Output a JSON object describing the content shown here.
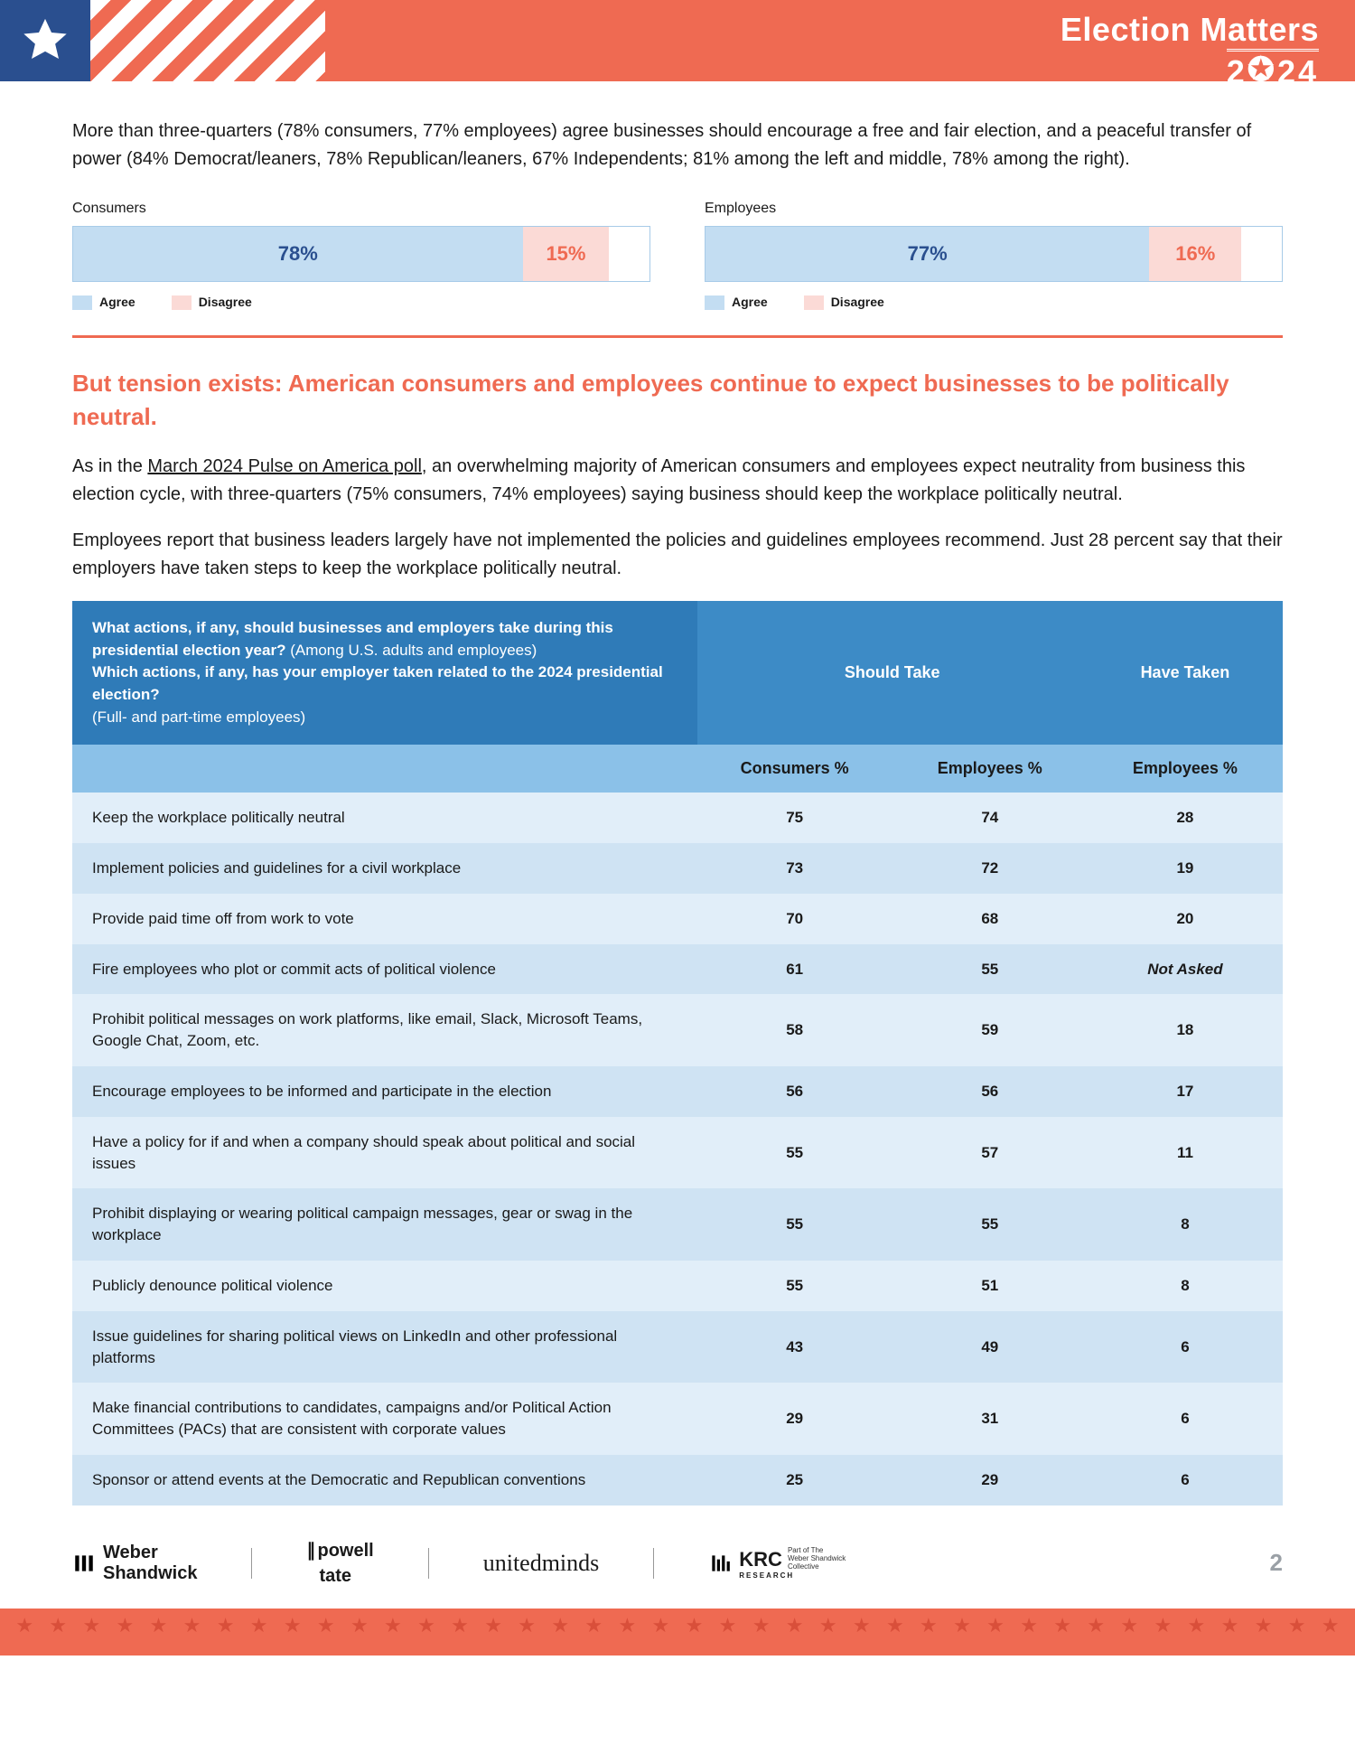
{
  "colors": {
    "coral": "#ef6a52",
    "navy": "#2a4f8f",
    "agree_fill": "#c3ddf2",
    "disagree_fill": "#fbdad6",
    "table_head_dark": "#2f7bb8",
    "table_head_mid": "#3d8bc6",
    "table_head_sub": "#8bc1e8",
    "row_light": "#e1eef9",
    "row_dark": "#cfe3f3",
    "page_num": "#9aa0a6"
  },
  "header": {
    "title_line1": "Election Matters",
    "title_line2_prefix": "2",
    "title_line2_suffix": "24",
    "star_glyph": "★"
  },
  "intro": "More than three-quarters (78% consumers, 77% employees) agree businesses should encourage a free and fair election, and a peaceful transfer of power (84% Democrat/leaners, 78% Republican/leaners, 67% Independents; 81% among the left and middle, 78% among the right).",
  "charts": {
    "legend_agree": "Agree",
    "legend_disagree": "Disagree",
    "consumers": {
      "title": "Consumers",
      "agree_pct": 78,
      "disagree_pct": 15,
      "agree_label": "78%",
      "disagree_label": "15%"
    },
    "employees": {
      "title": "Employees",
      "agree_pct": 77,
      "disagree_pct": 16,
      "agree_label": "77%",
      "disagree_label": "16%"
    }
  },
  "sub_head": "But tension exists: American consumers and employees continue to expect businesses to be politically neutral.",
  "para1_pre": "As in the ",
  "para1_link": "March 2024 Pulse on America poll",
  "para1_post": ", an overwhelming majority of American consumers and employees expect neutrality from business this election cycle, with three-quarters (75% consumers, 74% employees) saying business should keep the workplace politically neutral.",
  "para2": "Employees report that business leaders largely have not implemented the policies and guidelines employees recommend. Just 28 percent say that their employers have taken steps to keep the workplace politically neutral.",
  "table": {
    "q_bold1": "What actions, if any, should businesses and employers take during this presidential election year?",
    "q_light1": " (Among U.S. adults and employees)",
    "q_bold2": "Which actions, if any, has your employer taken related to the 2024 presidential election?",
    "q_light2": "(Full- and part-time employees)",
    "col_should": "Should Take",
    "col_have": "Have Taken",
    "sub_consumers": "Consumers %",
    "sub_employees": "Employees %",
    "sub_employees2": "Employees %",
    "not_asked": "Not Asked",
    "rows": [
      {
        "label": "Keep the workplace politically neutral",
        "c": "75",
        "e": "74",
        "h": "28"
      },
      {
        "label": "Implement policies and guidelines for a civil workplace",
        "c": "73",
        "e": "72",
        "h": "19"
      },
      {
        "label": "Provide paid time off from work to vote",
        "c": "70",
        "e": "68",
        "h": "20"
      },
      {
        "label": "Fire employees who plot or commit acts of political violence",
        "c": "61",
        "e": "55",
        "h": "__NA__"
      },
      {
        "label": "Prohibit political messages on work platforms, like email, Slack, Microsoft Teams, Google Chat, Zoom, etc.",
        "c": "58",
        "e": "59",
        "h": "18"
      },
      {
        "label": "Encourage employees to be informed and participate in the election",
        "c": "56",
        "e": "56",
        "h": "17"
      },
      {
        "label": "Have a policy for if and when a company should speak about political and social issues",
        "c": "55",
        "e": "57",
        "h": "11"
      },
      {
        "label": "Prohibit displaying or wearing political campaign messages, gear or swag in the workplace",
        "c": "55",
        "e": "55",
        "h": "8"
      },
      {
        "label": "Publicly denounce political violence",
        "c": "55",
        "e": "51",
        "h": "8"
      },
      {
        "label": "Issue guidelines for sharing political views on LinkedIn and other professional platforms",
        "c": "43",
        "e": "49",
        "h": "6"
      },
      {
        "label": "Make financial contributions to candidates, campaigns and/or Political Action Committees (PACs) that are consistent with corporate values",
        "c": "29",
        "e": "31",
        "h": "6"
      },
      {
        "label": "Sponsor or attend events at the Democratic and Republican conventions",
        "c": "25",
        "e": "29",
        "h": "6"
      }
    ]
  },
  "footer": {
    "weber1": "Weber",
    "weber2": "Shandwick",
    "powell1": "powell",
    "powell2": "tate",
    "um": "unitedminds",
    "krc": "KRC",
    "krc_sub": "RESEARCH",
    "krc_tag1": "Part of The",
    "krc_tag2": "Weber Shandwick",
    "krc_tag3": "Collective",
    "page": "2"
  }
}
